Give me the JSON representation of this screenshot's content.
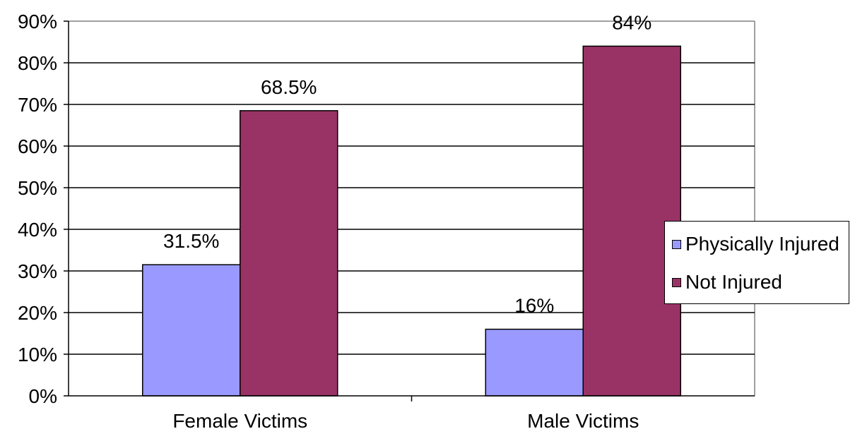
{
  "chart_data": {
    "type": "bar",
    "title": "",
    "xlabel": "",
    "ylabel": "",
    "categories": [
      "Female Victims",
      "Male Victims"
    ],
    "series": [
      {
        "name": "Physically Injured",
        "values": [
          31.5,
          16
        ],
        "labels": [
          "31.5%",
          "16%"
        ],
        "color": "#9999ff"
      },
      {
        "name": "Not Injured",
        "values": [
          68.5,
          84
        ],
        "labels": [
          "68.5%",
          "84%"
        ],
        "color": "#993366"
      }
    ],
    "ylim": [
      0,
      90
    ],
    "y_ticks": [
      "0%",
      "10%",
      "20%",
      "30%",
      "40%",
      "50%",
      "60%",
      "70%",
      "80%",
      "90%"
    ],
    "grid": true,
    "legend_position": "right"
  }
}
